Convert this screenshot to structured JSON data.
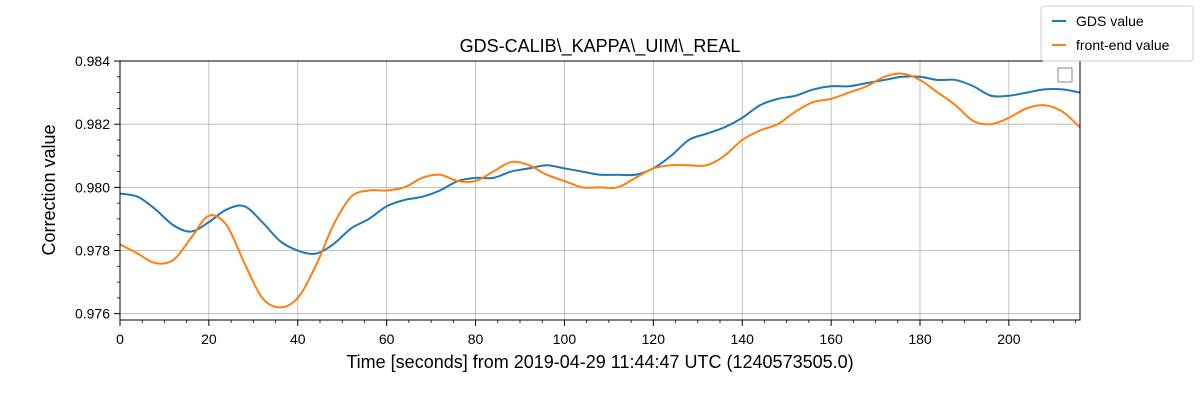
{
  "chart_data": {
    "type": "line",
    "title": "GDS-CALIB\\_KAPPA\\_UIM\\_REAL",
    "xlabel": "Time [seconds] from 2019-04-29 11:44:47 UTC (1240573505.0)",
    "ylabel": "Correction value",
    "xlim": [
      0,
      216
    ],
    "ylim": [
      0.9758,
      0.984
    ],
    "xticks": [
      0,
      20,
      40,
      60,
      80,
      100,
      120,
      140,
      160,
      180,
      200
    ],
    "xtick_labels": [
      "0",
      "20",
      "40",
      "60",
      "80",
      "100",
      "120",
      "140",
      "160",
      "180",
      "200"
    ],
    "yticks": [
      0.976,
      0.978,
      0.98,
      0.982,
      0.984
    ],
    "ytick_labels": [
      "0.976",
      "0.978",
      "0.980",
      "0.982",
      "0.984"
    ],
    "grid": true,
    "legend_position": "top-right",
    "series": [
      {
        "name": "GDS value",
        "color": "#1f77b4",
        "x": [
          0,
          4,
          8,
          12,
          16,
          20,
          24,
          28,
          32,
          36,
          40,
          44,
          48,
          52,
          56,
          60,
          64,
          68,
          72,
          76,
          80,
          84,
          88,
          92,
          96,
          100,
          104,
          108,
          112,
          116,
          120,
          124,
          128,
          132,
          136,
          140,
          144,
          148,
          152,
          156,
          160,
          164,
          168,
          172,
          176,
          180,
          184,
          188,
          192,
          196,
          200,
          204,
          208,
          212,
          216
        ],
        "y": [
          0.9798,
          0.9797,
          0.9793,
          0.9788,
          0.9786,
          0.9789,
          0.9793,
          0.9794,
          0.9789,
          0.9783,
          0.978,
          0.9779,
          0.9782,
          0.9787,
          0.979,
          0.9794,
          0.9796,
          0.9797,
          0.9799,
          0.9802,
          0.9803,
          0.9803,
          0.9805,
          0.9806,
          0.9807,
          0.9806,
          0.9805,
          0.9804,
          0.9804,
          0.9804,
          0.9806,
          0.981,
          0.9815,
          0.9817,
          0.9819,
          0.9822,
          0.9826,
          0.9828,
          0.9829,
          0.9831,
          0.9832,
          0.9832,
          0.9833,
          0.9834,
          0.9835,
          0.9835,
          0.9834,
          0.9834,
          0.9832,
          0.9829,
          0.9829,
          0.983,
          0.9831,
          0.9831,
          0.983
        ]
      },
      {
        "name": "front-end value",
        "color": "#ff7f0e",
        "x": [
          0,
          4,
          8,
          12,
          16,
          20,
          24,
          28,
          32,
          36,
          40,
          44,
          48,
          52,
          56,
          60,
          64,
          68,
          72,
          76,
          80,
          84,
          88,
          92,
          96,
          100,
          104,
          108,
          112,
          116,
          120,
          124,
          128,
          132,
          136,
          140,
          144,
          148,
          152,
          156,
          160,
          164,
          168,
          172,
          176,
          180,
          184,
          188,
          192,
          196,
          200,
          204,
          208,
          212,
          216
        ],
        "y": [
          0.9782,
          0.9779,
          0.9776,
          0.9777,
          0.9784,
          0.9791,
          0.9788,
          0.9776,
          0.9765,
          0.9762,
          0.9765,
          0.9775,
          0.9788,
          0.9797,
          0.9799,
          0.9799,
          0.98,
          0.9803,
          0.9804,
          0.9802,
          0.9802,
          0.9805,
          0.9808,
          0.9807,
          0.9804,
          0.9802,
          0.98,
          0.98,
          0.98,
          0.9803,
          0.9806,
          0.9807,
          0.9807,
          0.9807,
          0.981,
          0.9815,
          0.9818,
          0.982,
          0.9824,
          0.9827,
          0.9828,
          0.983,
          0.9832,
          0.9835,
          0.9836,
          0.9834,
          0.983,
          0.9826,
          0.9821,
          0.982,
          0.9822,
          0.9825,
          0.9826,
          0.9824,
          0.9819
        ]
      }
    ]
  }
}
